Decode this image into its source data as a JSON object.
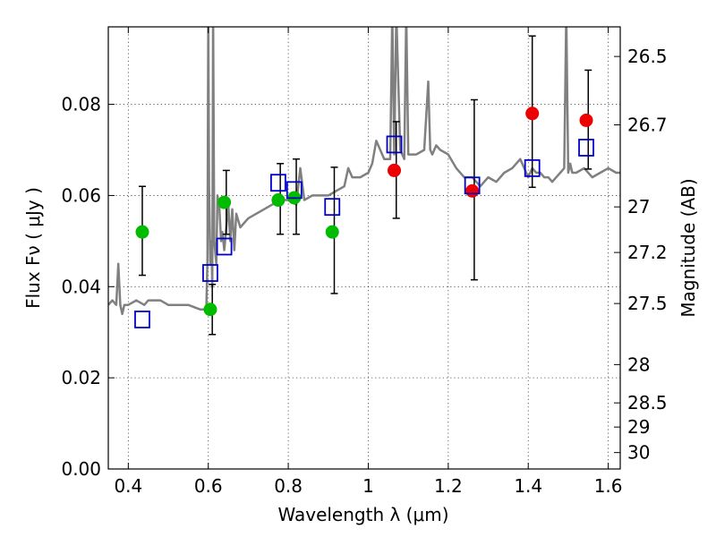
{
  "chart_data": {
    "type": "scatter",
    "title": "",
    "xlabel": "Wavelength  λ (μm)",
    "ylabel": "Flux  Fν  ( μJy )",
    "y2label": "Magnitude (AB)",
    "xlim": [
      0.35,
      1.63
    ],
    "ylim": [
      0.0,
      0.097
    ],
    "grid": true,
    "x_ticks": [
      0.4,
      0.6,
      0.8,
      1.0,
      1.2,
      1.4,
      1.6
    ],
    "x_tick_labels": [
      "0.4",
      "0.6",
      "0.8",
      "1",
      "1.2",
      "1.4",
      "1.6"
    ],
    "y_ticks": [
      0.0,
      0.02,
      0.04,
      0.06,
      0.08
    ],
    "y_tick_labels": [
      "0.00",
      "0.02",
      "0.04",
      "0.06",
      "0.08"
    ],
    "mag_ticks": [
      {
        "label": "26.5",
        "flux": 0.0905
      },
      {
        "label": "26.7",
        "flux": 0.0755
      },
      {
        "label": "27",
        "flux": 0.0575
      },
      {
        "label": "27.2",
        "flux": 0.0475
      },
      {
        "label": "27.5",
        "flux": 0.0363
      },
      {
        "label": "28",
        "flux": 0.0229
      },
      {
        "label": "28.5",
        "flux": 0.0145
      },
      {
        "label": "29",
        "flux": 0.0092
      },
      {
        "label": "30",
        "flux": 0.0036
      }
    ],
    "series": [
      {
        "type": "line",
        "color": "#808080",
        "x": [
          0.35,
          0.36,
          0.37,
          0.375,
          0.38,
          0.385,
          0.39,
          0.4,
          0.42,
          0.44,
          0.45,
          0.46,
          0.48,
          0.5,
          0.52,
          0.55,
          0.58,
          0.595,
          0.598,
          0.6,
          0.602,
          0.605,
          0.608,
          0.61,
          0.612,
          0.615,
          0.62,
          0.623,
          0.628,
          0.632,
          0.635,
          0.64,
          0.65,
          0.655,
          0.66,
          0.665,
          0.67,
          0.68,
          0.69,
          0.7,
          0.72,
          0.74,
          0.76,
          0.78,
          0.8,
          0.82,
          0.83,
          0.84,
          0.86,
          0.88,
          0.9,
          0.92,
          0.94,
          0.95,
          0.96,
          0.98,
          1.0,
          1.01,
          1.02,
          1.04,
          1.055,
          1.06,
          1.065,
          1.07,
          1.08,
          1.09,
          1.095,
          1.1,
          1.12,
          1.14,
          1.15,
          1.155,
          1.16,
          1.17,
          1.18,
          1.2,
          1.22,
          1.24,
          1.26,
          1.28,
          1.3,
          1.32,
          1.34,
          1.36,
          1.38,
          1.4,
          1.41,
          1.42,
          1.43,
          1.44,
          1.45,
          1.46,
          1.47,
          1.48,
          1.49,
          1.495,
          1.5,
          1.505,
          1.51,
          1.52,
          1.54,
          1.56,
          1.58,
          1.6,
          1.62,
          1.63
        ],
        "y": [
          0.036,
          0.037,
          0.036,
          0.045,
          0.036,
          0.034,
          0.036,
          0.036,
          0.037,
          0.036,
          0.037,
          0.037,
          0.037,
          0.036,
          0.036,
          0.036,
          0.035,
          0.035,
          0.046,
          0.1,
          0.062,
          0.045,
          0.05,
          0.04,
          0.1,
          0.05,
          0.045,
          0.06,
          0.057,
          0.05,
          0.052,
          0.048,
          0.058,
          0.05,
          0.057,
          0.048,
          0.056,
          0.053,
          0.054,
          0.055,
          0.056,
          0.057,
          0.058,
          0.059,
          0.059,
          0.058,
          0.066,
          0.059,
          0.06,
          0.06,
          0.06,
          0.061,
          0.062,
          0.066,
          0.064,
          0.064,
          0.065,
          0.067,
          0.072,
          0.068,
          0.068,
          0.1,
          0.069,
          0.1,
          0.07,
          0.068,
          0.1,
          0.069,
          0.069,
          0.07,
          0.085,
          0.07,
          0.069,
          0.071,
          0.07,
          0.069,
          0.066,
          0.064,
          0.064,
          0.062,
          0.064,
          0.063,
          0.065,
          0.066,
          0.068,
          0.064,
          0.066,
          0.065,
          0.065,
          0.064,
          0.064,
          0.063,
          0.064,
          0.065,
          0.066,
          0.1,
          0.065,
          0.067,
          0.065,
          0.065,
          0.066,
          0.064,
          0.065,
          0.066,
          0.065,
          0.065
        ]
      },
      {
        "type": "points",
        "marker": "circle",
        "color": "#00bb00",
        "x": [
          0.435,
          0.605,
          0.64,
          0.775,
          0.815,
          0.91
        ],
        "y": [
          0.052,
          0.035,
          0.0585,
          0.059,
          0.0595,
          0.052
        ]
      },
      {
        "type": "points",
        "marker": "circle",
        "color": "#ee0000",
        "x": [
          1.065,
          1.26,
          1.41,
          1.545
        ],
        "y": [
          0.0655,
          0.061,
          0.078,
          0.0765
        ]
      },
      {
        "type": "points",
        "marker": "square-open",
        "color": "#0000cc",
        "x": [
          0.435,
          0.605,
          0.64,
          0.775,
          0.815,
          0.91,
          1.065,
          1.26,
          1.41,
          1.545
        ],
        "y": [
          0.0328,
          0.043,
          0.0488,
          0.0628,
          0.0612,
          0.0575,
          0.0712,
          0.0622,
          0.066,
          0.0705
        ]
      }
    ],
    "error_bars": [
      {
        "x": 0.435,
        "low": 0.0425,
        "high": 0.062
      },
      {
        "x": 0.61,
        "low": 0.0295,
        "high": 0.0405
      },
      {
        "x": 0.645,
        "low": 0.0515,
        "high": 0.0655
      },
      {
        "x": 0.78,
        "low": 0.0515,
        "high": 0.067
      },
      {
        "x": 0.82,
        "low": 0.0515,
        "high": 0.068
      },
      {
        "x": 0.915,
        "low": 0.0385,
        "high": 0.0662
      },
      {
        "x": 1.07,
        "low": 0.055,
        "high": 0.0762
      },
      {
        "x": 1.265,
        "low": 0.0415,
        "high": 0.081
      },
      {
        "x": 1.41,
        "low": 0.0618,
        "high": 0.095
      },
      {
        "x": 1.55,
        "low": 0.0658,
        "high": 0.0875
      }
    ]
  }
}
